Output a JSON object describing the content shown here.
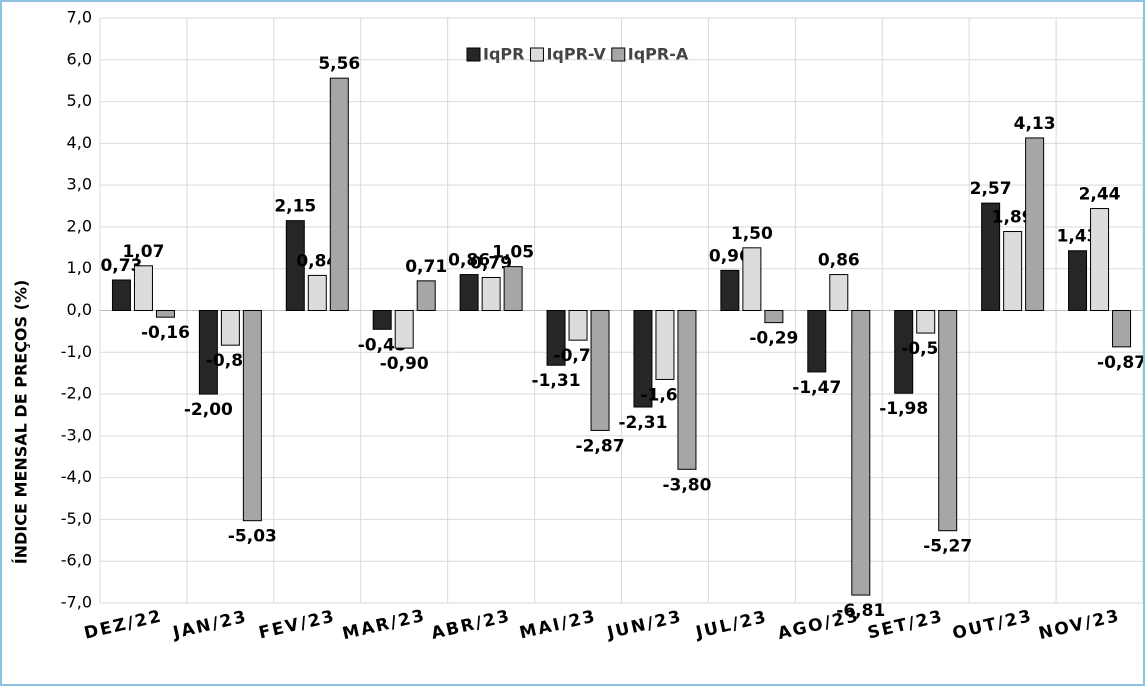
{
  "chart_data": {
    "type": "bar",
    "y_label": "ÍNDICE MENSAL DE PREÇOS (%)",
    "categories": [
      "DEZ/22",
      "JAN/23",
      "FEV/23",
      "MAR/23",
      "ABR/23",
      "MAI/23",
      "JUN/23",
      "JUL/23",
      "AGO/23",
      "SET/23",
      "OUT/23",
      "NOV/23"
    ],
    "series": [
      {
        "name": "IqPR",
        "color": "#262626",
        "values": [
          0.73,
          -2.0,
          2.15,
          -0.45,
          0.86,
          -1.31,
          -2.31,
          0.96,
          -1.47,
          -1.98,
          2.57,
          1.43
        ],
        "value_labels": [
          "0,73",
          "-2,00",
          "2,15",
          "-0,45",
          "0,86",
          "-1,31",
          "-2,31",
          "0,96",
          "-1,47",
          "-1,98",
          "2,57",
          "1,43"
        ]
      },
      {
        "name": "IqPR-V",
        "color": "#dcdcdc",
        "values": [
          1.07,
          -0.83,
          0.84,
          -0.9,
          0.79,
          -0.71,
          -1.65,
          1.5,
          0.86,
          -0.54,
          1.89,
          2.44
        ],
        "value_labels": [
          "1,07",
          "-0,83",
          "0,84",
          "-0,90",
          "0,79",
          "-0,71",
          "-1,65",
          "1,50",
          "0,86",
          "-0,54",
          "1,89",
          "2,44"
        ]
      },
      {
        "name": "IqPR-A",
        "color": "#a6a6a6",
        "values": [
          -0.16,
          -5.03,
          5.56,
          0.71,
          1.05,
          -2.87,
          -3.8,
          -0.29,
          -6.81,
          -5.27,
          4.13,
          -0.87
        ],
        "value_labels": [
          "-0,16",
          "-5,03",
          "5,56",
          "0,71",
          "1,05",
          "-2,87",
          "-3,80",
          "-0,29",
          "-6,81",
          "-5,27",
          "4,13",
          "-0,87"
        ]
      }
    ],
    "ylim": [
      -7,
      7
    ],
    "yticks": [
      {
        "value": -7,
        "label": "-7,0"
      },
      {
        "value": -6,
        "label": "-6,0"
      },
      {
        "value": -5,
        "label": "-5,0"
      },
      {
        "value": -4,
        "label": "-4,0"
      },
      {
        "value": -3,
        "label": "-3,0"
      },
      {
        "value": -2,
        "label": "-2,0"
      },
      {
        "value": -1,
        "label": "-1,0"
      },
      {
        "value": 0,
        "label": "0,0"
      },
      {
        "value": 1,
        "label": "1,0"
      },
      {
        "value": 2,
        "label": "2,0"
      },
      {
        "value": 3,
        "label": "3,0"
      },
      {
        "value": 4,
        "label": "4,0"
      },
      {
        "value": 5,
        "label": "5,0"
      },
      {
        "value": 6,
        "label": "6,0"
      },
      {
        "value": 7,
        "label": "7,0"
      }
    ],
    "grid": true,
    "legend": "top"
  }
}
